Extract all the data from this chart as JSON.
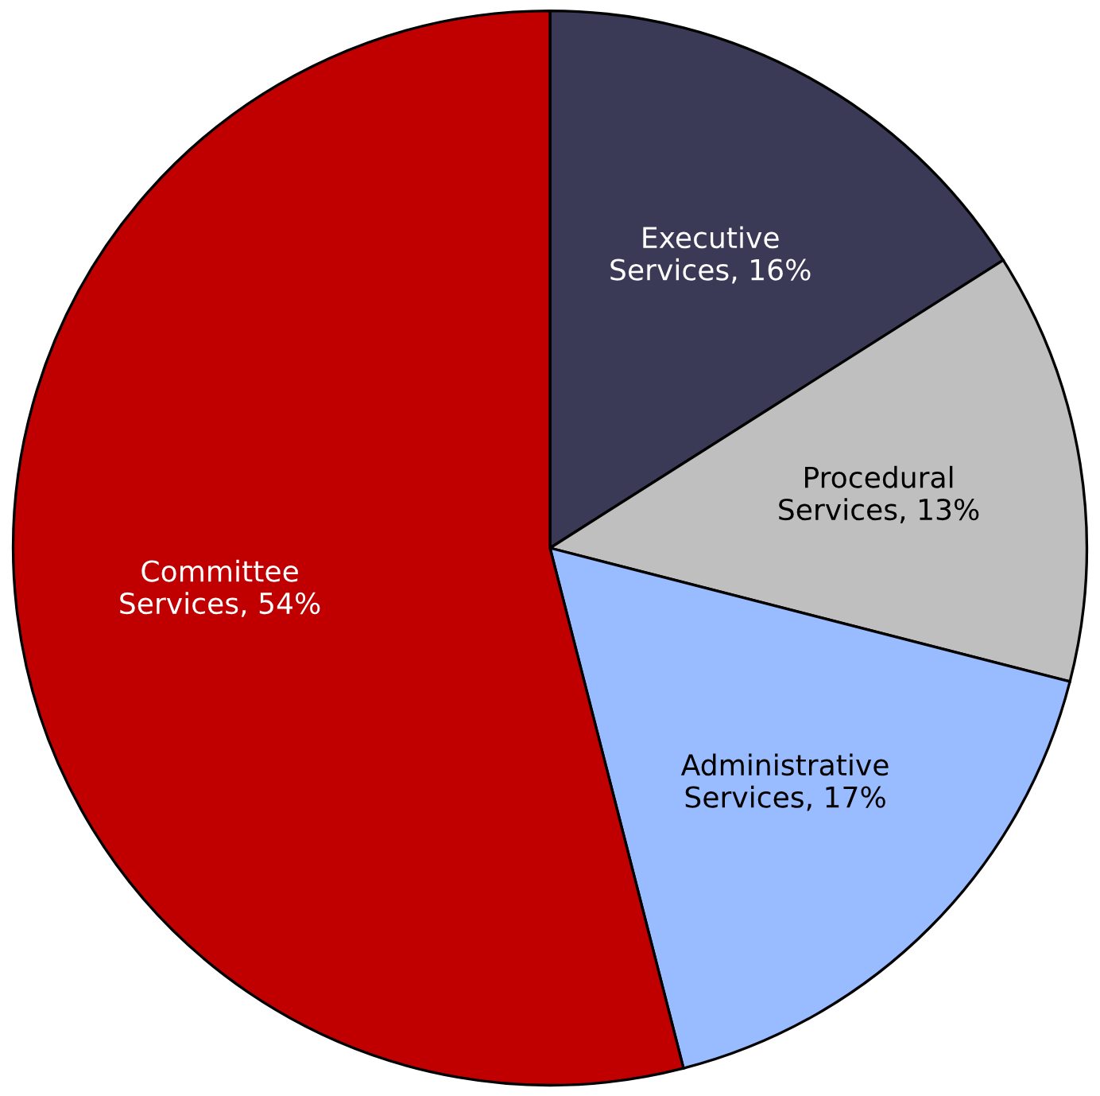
{
  "chart_data": {
    "type": "pie",
    "categories": [
      "Executive Services",
      "Procedural Services",
      "Administrative Services",
      "Committee Services"
    ],
    "values": [
      16,
      13,
      17,
      54
    ],
    "value_labels": [
      "16%",
      "13%",
      "17%",
      "54%"
    ],
    "colors": [
      "#3a3a56",
      "#bfbfbf",
      "#99bbff",
      "#c00000"
    ],
    "legend": false
  }
}
